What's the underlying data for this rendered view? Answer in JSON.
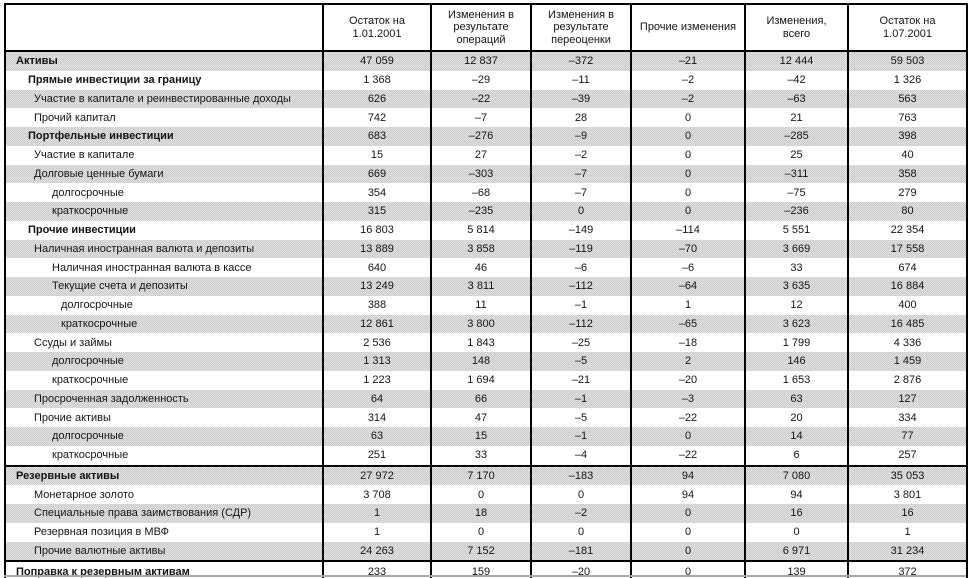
{
  "table": {
    "columns": [
      "",
      "Остаток на 1.01.2001",
      "Изменения в результате операций",
      "Изменения в результате переоценки",
      "Прочие изменения",
      "Изменения, всего",
      "Остаток на 1.07.2001"
    ],
    "rows": [
      {
        "label": "Активы",
        "level": 0,
        "bold": true,
        "rule": false,
        "values": [
          "47 059",
          "12 837",
          "–372",
          "–21",
          "12 444",
          "59 503"
        ]
      },
      {
        "label": "Прямые инвестиции за границу",
        "level": 1,
        "bold": true,
        "rule": false,
        "values": [
          "1 368",
          "–29",
          "–11",
          "–2",
          "–42",
          "1 326"
        ]
      },
      {
        "label": "Участие в капитале и реинвестированные доходы",
        "level": 2,
        "bold": false,
        "rule": false,
        "values": [
          "626",
          "–22",
          "–39",
          "–2",
          "–63",
          "563"
        ]
      },
      {
        "label": "Прочий капитал",
        "level": 2,
        "bold": false,
        "rule": false,
        "values": [
          "742",
          "–7",
          "28",
          "0",
          "21",
          "763"
        ]
      },
      {
        "label": "Портфельные инвестиции",
        "level": 1,
        "bold": true,
        "rule": false,
        "values": [
          "683",
          "–276",
          "–9",
          "0",
          "–285",
          "398"
        ]
      },
      {
        "label": "Участие в капитале",
        "level": 2,
        "bold": false,
        "rule": false,
        "values": [
          "15",
          "27",
          "–2",
          "0",
          "25",
          "40"
        ]
      },
      {
        "label": "Долговые ценные бумаги",
        "level": 2,
        "bold": false,
        "rule": false,
        "values": [
          "669",
          "–303",
          "–7",
          "0",
          "–311",
          "358"
        ]
      },
      {
        "label": "долгосрочные",
        "level": 3,
        "bold": false,
        "rule": false,
        "values": [
          "354",
          "–68",
          "–7",
          "0",
          "–75",
          "279"
        ]
      },
      {
        "label": "краткосрочные",
        "level": 3,
        "bold": false,
        "rule": false,
        "values": [
          "315",
          "–235",
          "0",
          "0",
          "–236",
          "80"
        ]
      },
      {
        "label": "Прочие инвестиции",
        "level": 1,
        "bold": true,
        "rule": false,
        "values": [
          "16 803",
          "5 814",
          "–149",
          "–114",
          "5 551",
          "22 354"
        ]
      },
      {
        "label": "Наличная иностранная валюта и депозиты",
        "level": 2,
        "bold": false,
        "rule": false,
        "values": [
          "13 889",
          "3 858",
          "–119",
          "–70",
          "3 669",
          "17 558"
        ]
      },
      {
        "label": "Наличная иностранная валюта в кассе",
        "level": 3,
        "bold": false,
        "rule": false,
        "values": [
          "640",
          "46",
          "–6",
          "–6",
          "33",
          "674"
        ]
      },
      {
        "label": "Текущие счета и депозиты",
        "level": 3,
        "bold": false,
        "rule": false,
        "values": [
          "13 249",
          "3 811",
          "–112",
          "–64",
          "3 635",
          "16 884"
        ]
      },
      {
        "label": "долгосрочные",
        "level": 4,
        "bold": false,
        "rule": false,
        "values": [
          "388",
          "11",
          "–1",
          "1",
          "12",
          "400"
        ]
      },
      {
        "label": "краткосрочные",
        "level": 4,
        "bold": false,
        "rule": false,
        "values": [
          "12 861",
          "3 800",
          "–112",
          "–65",
          "3 623",
          "16 485"
        ]
      },
      {
        "label": "Ссуды и займы",
        "level": 2,
        "bold": false,
        "rule": false,
        "values": [
          "2 536",
          "1 843",
          "–25",
          "–18",
          "1 799",
          "4 336"
        ]
      },
      {
        "label": "долгосрочные",
        "level": 3,
        "bold": false,
        "rule": false,
        "values": [
          "1 313",
          "148",
          "–5",
          "2",
          "146",
          "1 459"
        ]
      },
      {
        "label": "краткосрочные",
        "level": 3,
        "bold": false,
        "rule": false,
        "values": [
          "1 223",
          "1 694",
          "–21",
          "–20",
          "1 653",
          "2 876"
        ]
      },
      {
        "label": "Просроченная задолженность",
        "level": 2,
        "bold": false,
        "rule": false,
        "values": [
          "64",
          "66",
          "–1",
          "–3",
          "63",
          "127"
        ]
      },
      {
        "label": "Прочие активы",
        "level": 2,
        "bold": false,
        "rule": false,
        "values": [
          "314",
          "47",
          "–5",
          "–22",
          "20",
          "334"
        ]
      },
      {
        "label": "долгосрочные",
        "level": 3,
        "bold": false,
        "rule": false,
        "values": [
          "63",
          "15",
          "–1",
          "0",
          "14",
          "77"
        ]
      },
      {
        "label": "краткосрочные",
        "level": 3,
        "bold": false,
        "rule": false,
        "values": [
          "251",
          "33",
          "–4",
          "–22",
          "6",
          "257"
        ]
      },
      {
        "label": "Резервные активы",
        "level": 0,
        "bold": true,
        "rule": true,
        "values": [
          "27 972",
          "7 170",
          "–183",
          "94",
          "7 080",
          "35 053"
        ]
      },
      {
        "label": "Монетарное золото",
        "level": 2,
        "bold": false,
        "rule": false,
        "values": [
          "3 708",
          "0",
          "0",
          "94",
          "94",
          "3 801"
        ]
      },
      {
        "label": "Специальные права заимствования (СДР)",
        "level": 2,
        "bold": false,
        "rule": false,
        "values": [
          "1",
          "18",
          "–2",
          "0",
          "16",
          "16"
        ]
      },
      {
        "label": "Резервная позиция в МВФ",
        "level": 2,
        "bold": false,
        "rule": false,
        "values": [
          "1",
          "0",
          "0",
          "0",
          "0",
          "1"
        ]
      },
      {
        "label": "Прочие валютные активы",
        "level": 2,
        "bold": false,
        "rule": false,
        "values": [
          "24 263",
          "7 152",
          "–181",
          "0",
          "6 971",
          "31 234"
        ]
      },
      {
        "label": "Поправка к резервным активам",
        "level": 0,
        "bold": true,
        "rule": true,
        "values": [
          "233",
          "159",
          "–20",
          "0",
          "139",
          "372"
        ]
      }
    ]
  },
  "colors": {
    "stripe": "#d6d6d6",
    "border": "#000000",
    "text": "#141414"
  }
}
